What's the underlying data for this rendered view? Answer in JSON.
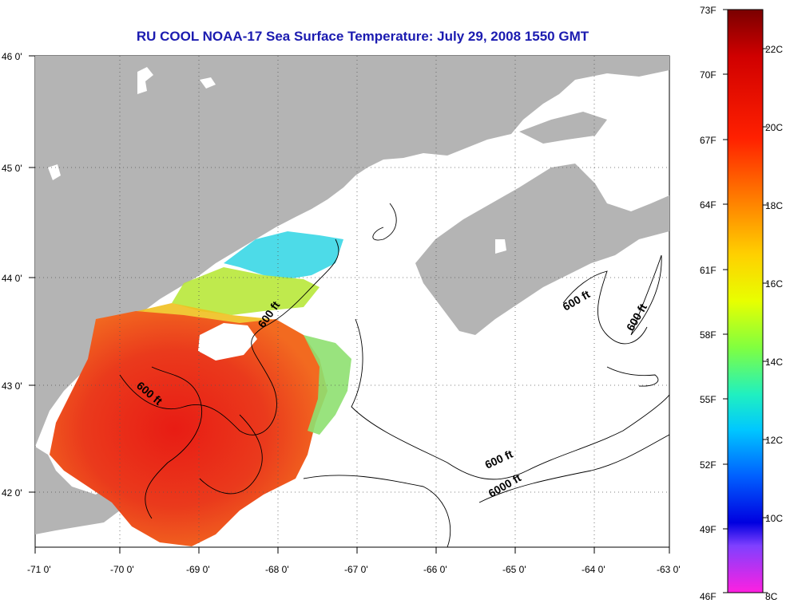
{
  "title": "RU COOL  NOAA-17  Sea Surface Temperature:  July 29, 2008 1550 GMT",
  "lon_ticks": [
    "-71 0'",
    "-70 0'",
    "-69 0'",
    "-68 0'",
    "-67 0'",
    "-66 0'",
    "-65 0'",
    "-64 0'",
    "-63 0'"
  ],
  "lat_ticks": [
    "46 0'",
    "45 0'",
    "44 0'",
    "43 0'",
    "42 0'"
  ],
  "contour_labels": [
    "600 ft",
    "600 ft",
    "600 ft",
    "600 ft",
    "6000 ft",
    "600 ft"
  ],
  "colorbar": {
    "fahrenheit": [
      "73F",
      "70F",
      "67F",
      "64F",
      "61F",
      "58F",
      "55F",
      "52F",
      "49F",
      "46F"
    ],
    "celsius": [
      "22C",
      "20C",
      "18C",
      "16C",
      "14C",
      "12C",
      "10C",
      "8C"
    ]
  },
  "colors": {
    "land": "#b4b4b4",
    "title": "#1b1bb0",
    "sst_warm": "#e52a1a",
    "sst_cool": "#3ad7e6"
  }
}
